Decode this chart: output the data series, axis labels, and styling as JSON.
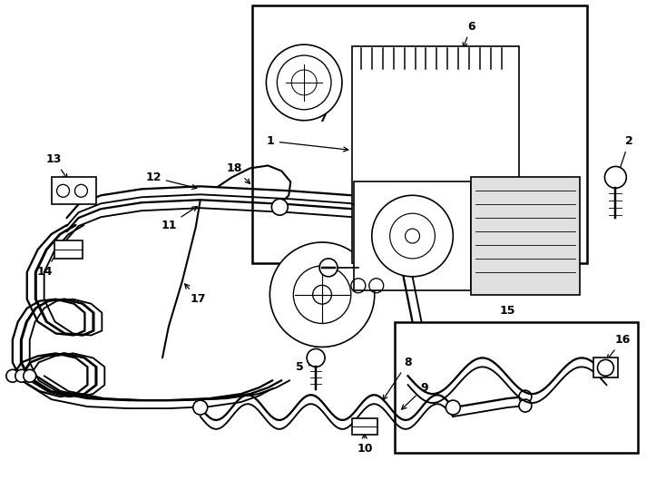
{
  "background_color": "#ffffff",
  "line_color": "#000000",
  "figure_width": 7.34,
  "figure_height": 5.4,
  "dpi": 100
}
